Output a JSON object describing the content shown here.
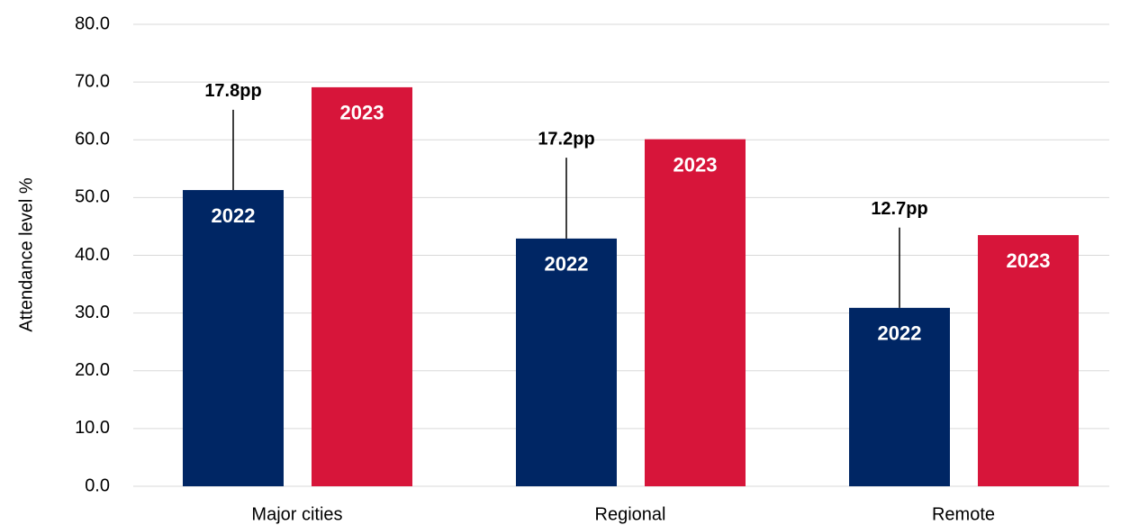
{
  "chart_data": {
    "type": "bar",
    "y_label": "Attendance level %",
    "categories": [
      "Major cities",
      "Regional",
      "Remote"
    ],
    "series": [
      {
        "name": "2022",
        "color": "#002664",
        "values": [
          51.3,
          42.9,
          30.9
        ],
        "errors": [
          13.9,
          14.0,
          13.9
        ]
      },
      {
        "name": "2023",
        "color": "#d7153a",
        "values": [
          69.1,
          60.1,
          43.5
        ]
      }
    ],
    "annotations": [
      "17.8pp",
      "17.2pp",
      "12.7pp"
    ],
    "ylim": [
      0,
      80
    ],
    "yticks": [
      {
        "value": 0,
        "label": "0.0"
      },
      {
        "value": 10,
        "label": "10.0"
      },
      {
        "value": 20,
        "label": "20.0"
      },
      {
        "value": 30,
        "label": "30.0"
      },
      {
        "value": 40,
        "label": "40.0"
      },
      {
        "value": 50,
        "label": "50.0"
      },
      {
        "value": 60,
        "label": "60.0"
      },
      {
        "value": 70,
        "label": "70.0"
      },
      {
        "value": 80,
        "label": "80.0"
      }
    ],
    "grid": true
  }
}
